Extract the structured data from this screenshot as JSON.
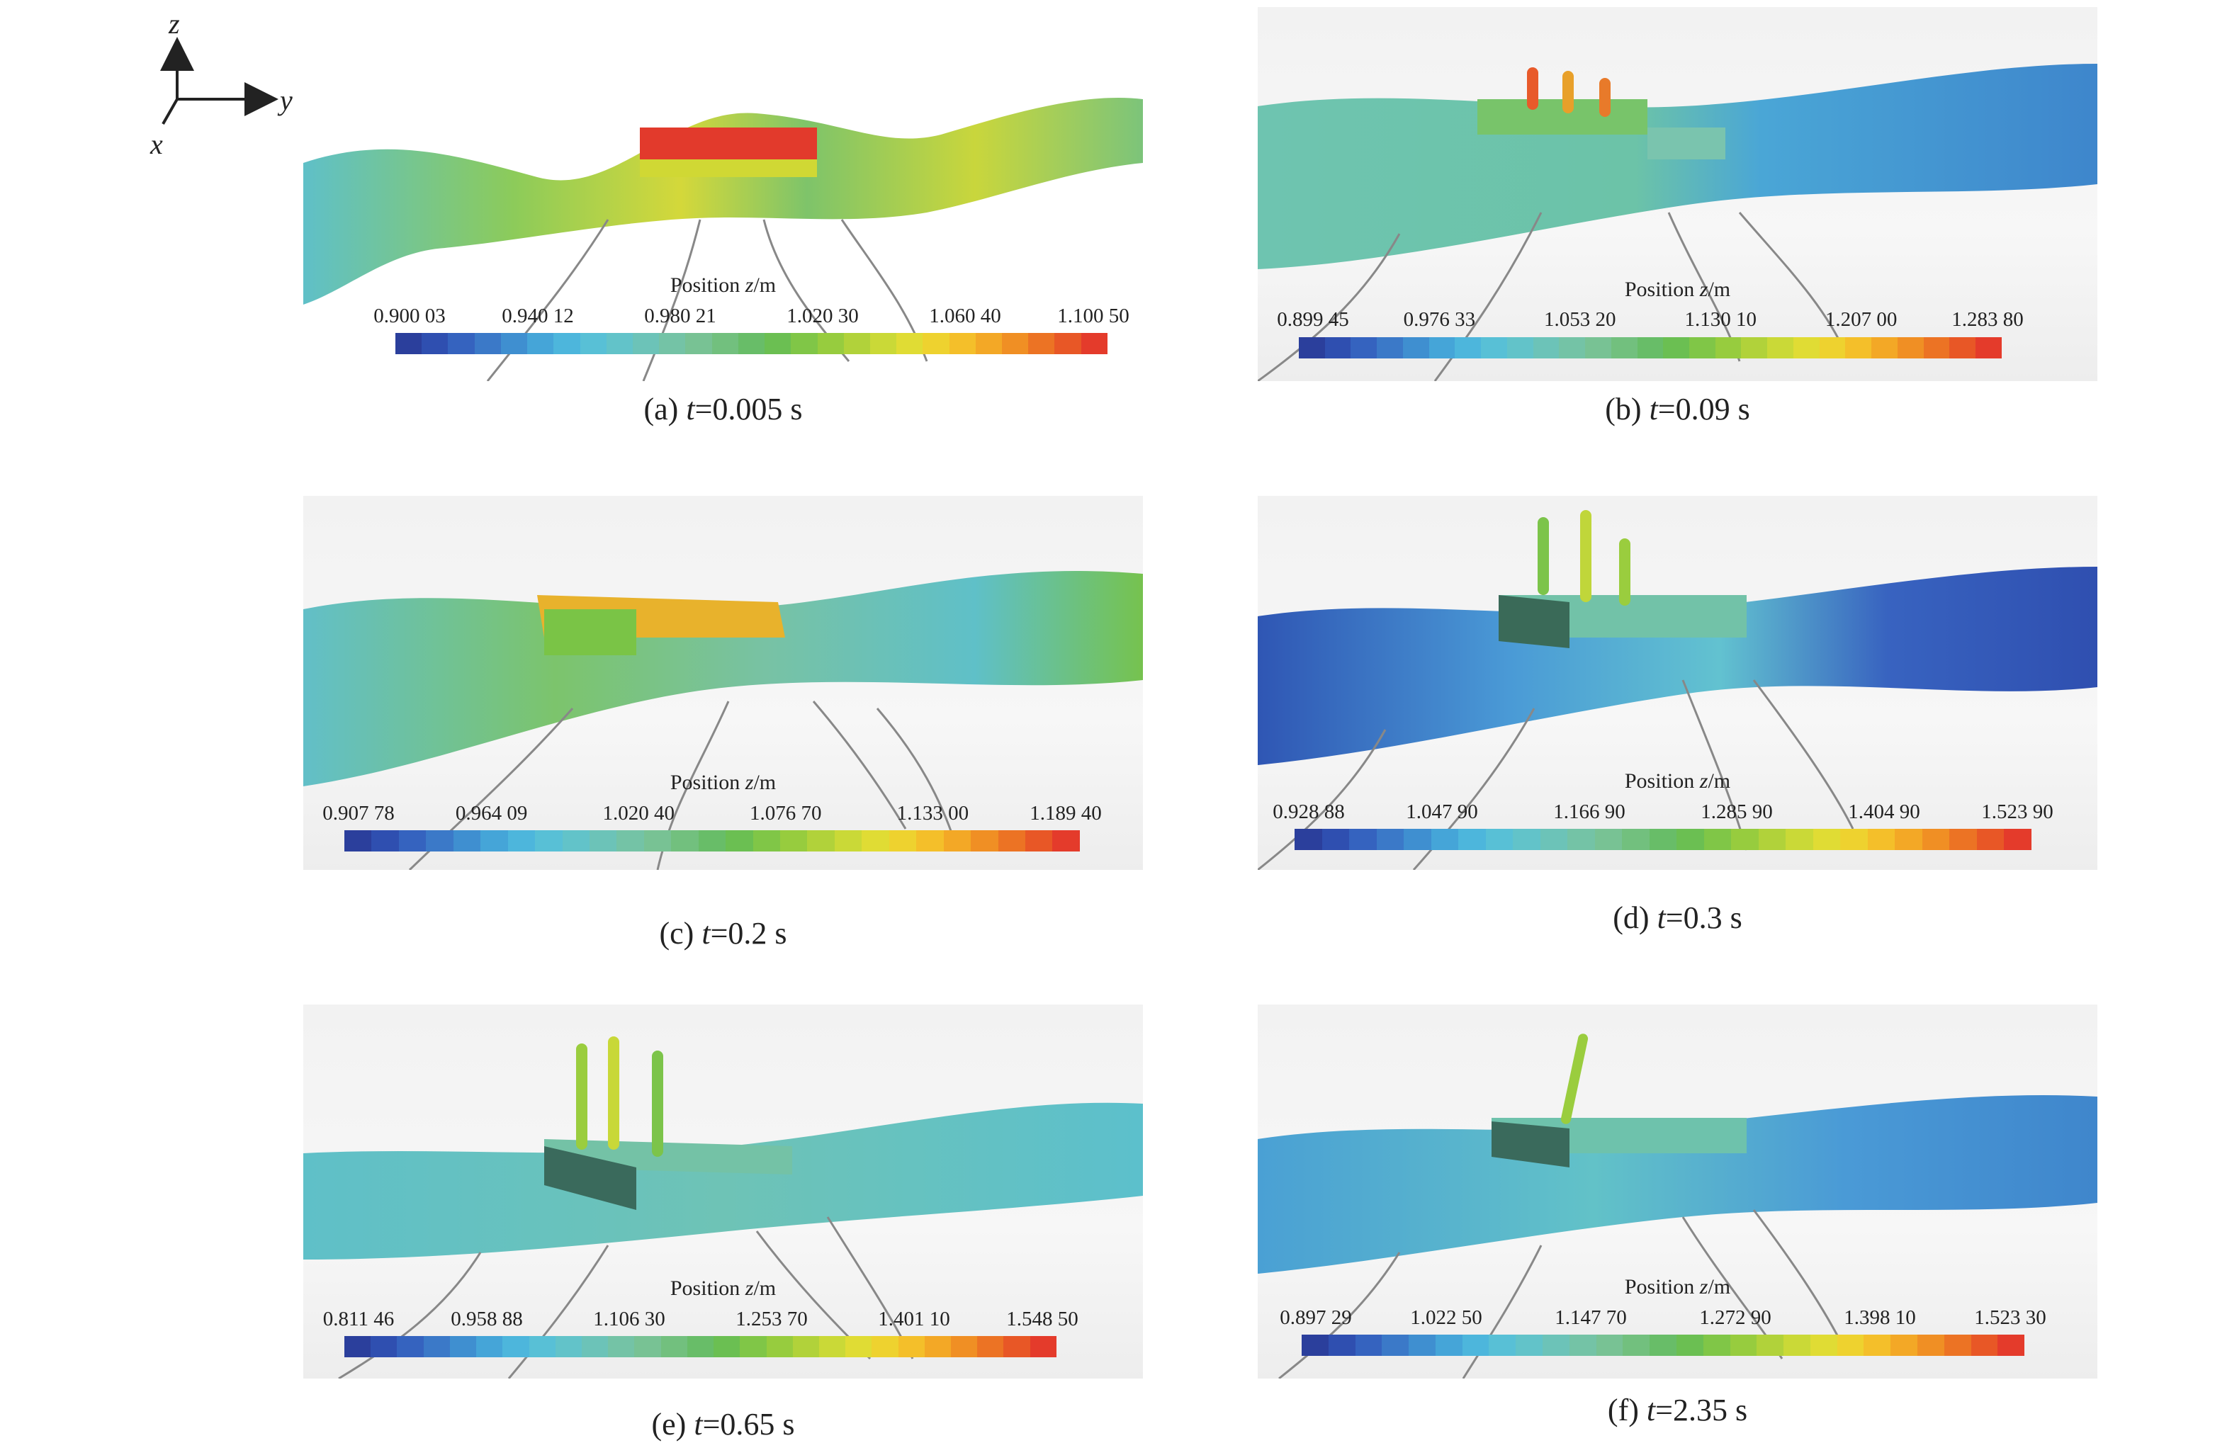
{
  "axes": {
    "z": "z",
    "y": "y",
    "x": "x"
  },
  "legend_title": "Position ",
  "legend_title_var": "z",
  "legend_title_unit": "/m",
  "colormap": [
    "#2b3f9c",
    "#2f4fb0",
    "#3563bf",
    "#3b79c8",
    "#3f8fd0",
    "#45a5d8",
    "#4db6dc",
    "#58c0d6",
    "#62c3c9",
    "#6cc3b8",
    "#74c3a6",
    "#78c294",
    "#72c07e",
    "#68bd68",
    "#6bbf52",
    "#80c647",
    "#97cc3e",
    "#b1d23a",
    "#cad937",
    "#e0dc34",
    "#eed22f",
    "#f4bf2a",
    "#f3a826",
    "#f08f24",
    "#ec7324",
    "#e85726",
    "#e43b2b"
  ],
  "panels": [
    {
      "caption_pre": "(a) ",
      "caption_var": "t",
      "caption_post": "=0.005 s",
      "ticks": [
        "0.900 03",
        "0.940 12",
        "0.980 21",
        "1.020 30",
        "1.060 40",
        "1.100 50"
      ]
    },
    {
      "caption_pre": "(b) ",
      "caption_var": "t",
      "caption_post": "=0.09 s",
      "ticks": [
        "0.899 45",
        "0.976 33",
        "1.053 20",
        "1.130 10",
        "1.207 00",
        "1.283 80"
      ]
    },
    {
      "caption_pre": "(c) ",
      "caption_var": "t",
      "caption_post": "=0.2 s",
      "ticks": [
        "0.907 78",
        "0.964 09",
        "1.020 40",
        "1.076 70",
        "1.133 00",
        "1.189 40"
      ]
    },
    {
      "caption_pre": "(d) ",
      "caption_var": "t",
      "caption_post": "=0.3 s",
      "ticks": [
        "0.928 88",
        "1.047 90",
        "1.166 90",
        "1.285 90",
        "1.404 90",
        "1.523 90"
      ]
    },
    {
      "caption_pre": "(e) ",
      "caption_var": "t",
      "caption_post": "=0.65 s",
      "ticks": [
        "0.811 46",
        "0.958 88",
        "1.106 30",
        "1.253 70",
        "1.401 10",
        "1.548 50"
      ]
    },
    {
      "caption_pre": "(f) ",
      "caption_var": "t",
      "caption_post": "=2.35 s",
      "ticks": [
        "0.897 29",
        "1.022 50",
        "1.147 70",
        "1.272 90",
        "1.398 10",
        "1.523 30"
      ]
    }
  ]
}
